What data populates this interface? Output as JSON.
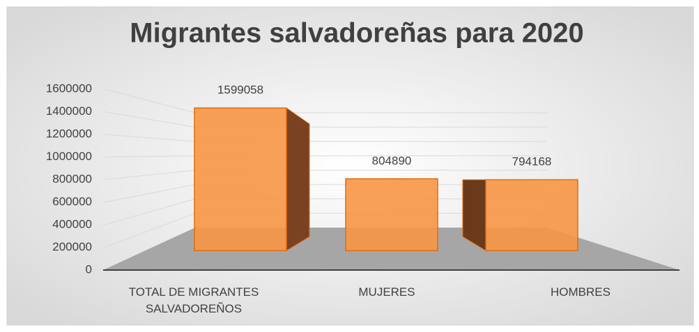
{
  "chart_data": {
    "type": "bar3d",
    "title": "Migrantes salvadoreñas para 2020",
    "categories": [
      "TOTAL DE MIGRANTES SALVADOREÑOS",
      "MUJERES",
      "HOMBRES"
    ],
    "values": [
      1599058,
      804890,
      794168
    ],
    "color": "#f79646",
    "ylim": [
      0,
      1600000
    ],
    "yticks": [
      0,
      200000,
      400000,
      600000,
      800000,
      1000000,
      1200000,
      1400000,
      1600000
    ],
    "grid": true
  }
}
